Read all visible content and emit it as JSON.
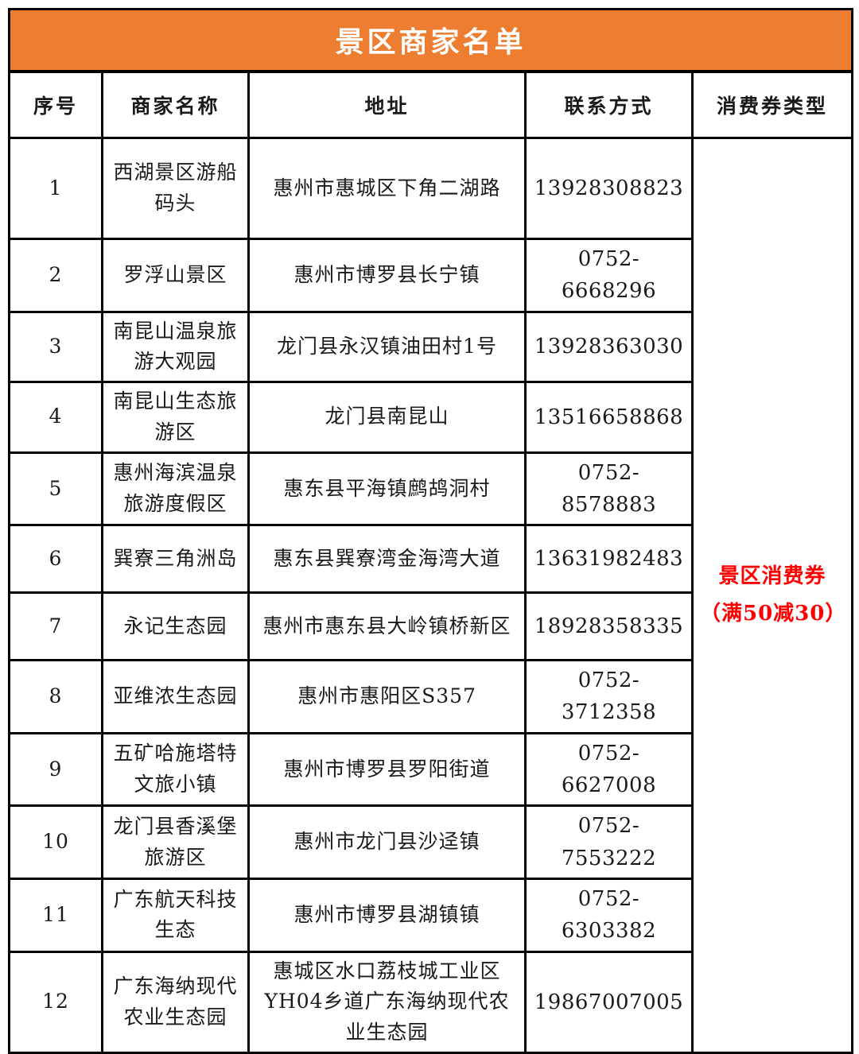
{
  "table": {
    "title": "景区商家名单",
    "columns": {
      "no": "序号",
      "name": "商家名称",
      "address": "地址",
      "contact": "联系方式",
      "coupon_type": "消费券类型"
    },
    "rows": [
      {
        "no": "1",
        "name": "西湖景区游船码头",
        "address": "惠州市惠城区下角二湖路",
        "contact": "13928308823"
      },
      {
        "no": "2",
        "name": "罗浮山景区",
        "address": "惠州市博罗县长宁镇",
        "contact": "0752-6668296"
      },
      {
        "no": "3",
        "name": "南昆山温泉旅游大观园",
        "address": "龙门县永汉镇油田村1号",
        "contact": "13928363030"
      },
      {
        "no": "4",
        "name": "南昆山生态旅游区",
        "address": "龙门县南昆山",
        "contact": "13516658868"
      },
      {
        "no": "5",
        "name": "惠州海滨温泉旅游度假区",
        "address": "惠东县平海镇鹧鸪洞村",
        "contact": "0752-8578883"
      },
      {
        "no": "6",
        "name": "巽寮三角洲岛",
        "address": "惠东县巽寮湾金海湾大道",
        "contact": "13631982483"
      },
      {
        "no": "7",
        "name": "永记生态园",
        "address": "惠州市惠东县大岭镇桥新区",
        "contact": "18928358335"
      },
      {
        "no": "8",
        "name": "亚维浓生态园",
        "address": "惠州市惠阳区S357",
        "contact": "0752-3712358"
      },
      {
        "no": "9",
        "name": "五矿哈施塔特文旅小镇",
        "address": "惠州市博罗县罗阳街道",
        "contact": "0752-6627008"
      },
      {
        "no": "10",
        "name": "龙门县香溪堡旅游区",
        "address": "惠州市龙门县沙迳镇",
        "contact": "0752-7553222"
      },
      {
        "no": "11",
        "name": "广东航天科技生态",
        "address": "惠州市博罗县湖镇镇",
        "contact": "0752-6303382"
      },
      {
        "no": "12",
        "name": "广东海纳现代农业生态园",
        "address": "惠城区水口荔枝城工业区YH04乡道广东海纳现代农业生态园",
        "contact": "19867007005"
      }
    ],
    "coupon": {
      "line1": "景区消费券",
      "line2": "（满50减30）"
    }
  },
  "colors": {
    "title_bg": "#ED7D31",
    "title_text": "#FFFFFF",
    "coupon_text": "#FF0000",
    "border": "#000000"
  }
}
